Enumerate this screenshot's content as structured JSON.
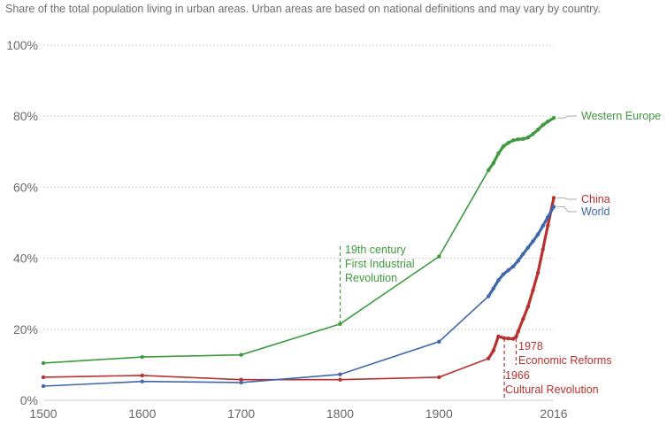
{
  "chart_data": {
    "type": "line",
    "title": "",
    "subtitle": "Share of the total population living in urban areas. Urban areas are based on national definitions and may vary by country.",
    "xlabel": "",
    "ylabel": "",
    "xlim": [
      1500,
      2016
    ],
    "ylim": [
      0,
      100
    ],
    "x_ticks": [
      1500,
      1600,
      1700,
      1800,
      1900,
      2016
    ],
    "y_ticks": [
      0,
      20,
      40,
      60,
      80,
      100
    ],
    "y_tick_labels": [
      "0%",
      "20%",
      "40%",
      "60%",
      "80%",
      "100%"
    ],
    "grid": "horizontal-dotted",
    "series": [
      {
        "name": "Western Europe",
        "color": "#3d9a3d",
        "points": [
          [
            1500,
            10.5
          ],
          [
            1600,
            12.2
          ],
          [
            1700,
            12.8
          ],
          [
            1800,
            21.5
          ],
          [
            1900,
            40.5
          ],
          [
            1950,
            64.8
          ],
          [
            1955,
            66.8
          ],
          [
            1960,
            69.5
          ],
          [
            1965,
            71.5
          ],
          [
            1970,
            72.5
          ],
          [
            1975,
            73.2
          ],
          [
            1980,
            73.5
          ],
          [
            1985,
            73.6
          ],
          [
            1990,
            74.0
          ],
          [
            1995,
            75.0
          ],
          [
            2000,
            76.2
          ],
          [
            2005,
            77.5
          ],
          [
            2010,
            78.5
          ],
          [
            2016,
            79.5
          ]
        ]
      },
      {
        "name": "China",
        "color": "#b8312f",
        "points": [
          [
            1500,
            6.5
          ],
          [
            1600,
            7.0
          ],
          [
            1700,
            5.8
          ],
          [
            1800,
            5.8
          ],
          [
            1900,
            6.5
          ],
          [
            1950,
            11.8
          ],
          [
            1955,
            14.0
          ],
          [
            1960,
            18.0
          ],
          [
            1966,
            17.5
          ],
          [
            1970,
            17.4
          ],
          [
            1975,
            17.3
          ],
          [
            1978,
            17.9
          ],
          [
            1980,
            19.4
          ],
          [
            1985,
            22.9
          ],
          [
            1990,
            26.4
          ],
          [
            1995,
            31.0
          ],
          [
            2000,
            35.9
          ],
          [
            2005,
            42.5
          ],
          [
            2010,
            49.2
          ],
          [
            2016,
            57.0
          ]
        ]
      },
      {
        "name": "World",
        "color": "#3e67ad",
        "points": [
          [
            1500,
            4.0
          ],
          [
            1600,
            5.3
          ],
          [
            1700,
            5.0
          ],
          [
            1800,
            7.3
          ],
          [
            1900,
            16.5
          ],
          [
            1950,
            29.3
          ],
          [
            1955,
            31.5
          ],
          [
            1960,
            33.8
          ],
          [
            1965,
            35.5
          ],
          [
            1970,
            36.6
          ],
          [
            1975,
            37.7
          ],
          [
            1980,
            39.3
          ],
          [
            1985,
            41.2
          ],
          [
            1990,
            43.0
          ],
          [
            1995,
            44.8
          ],
          [
            2000,
            46.7
          ],
          [
            2005,
            49.1
          ],
          [
            2010,
            51.6
          ],
          [
            2016,
            54.5
          ]
        ]
      }
    ],
    "annotations": [
      {
        "id": "industrial",
        "x": 1800,
        "lines": [
          "19th century",
          "First Industrial",
          "Revolution"
        ],
        "color": "#3d9a3d"
      },
      {
        "id": "cultural",
        "x": 1966,
        "lines": [
          "1966",
          "Cultural Revolution"
        ],
        "color": "#b8312f"
      },
      {
        "id": "reforms",
        "x": 1978,
        "lines": [
          "1978",
          "Economic Reforms"
        ],
        "color": "#b8312f"
      }
    ]
  }
}
